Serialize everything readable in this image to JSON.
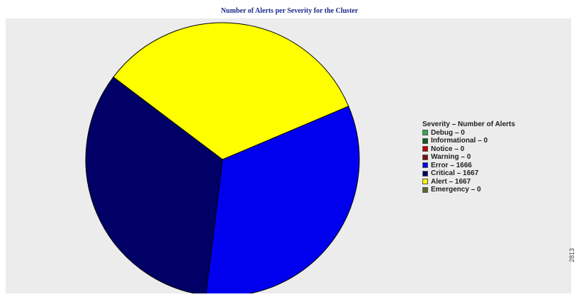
{
  "chart_data": {
    "type": "pie",
    "title": "Number of Alerts per Severity for the Cluster",
    "legend_title": "Severity – Number of Alerts",
    "legend_placement": "right",
    "categories": [
      "Debug",
      "Informational",
      "Notice",
      "Warning",
      "Error",
      "Critical",
      "Alert",
      "Emergency"
    ],
    "values": [
      0,
      0,
      0,
      0,
      1666,
      1667,
      1667,
      0
    ],
    "legend_labels": [
      "Debug – 0",
      "Informational – 0",
      "Notice – 0",
      "Warning – 0",
      "Error – 1666",
      "Critical – 1667",
      "Alert – 1667",
      "Emergency – 0"
    ],
    "colors": [
      "#33aa55",
      "#0b5d1e",
      "#c00000",
      "#7a1010",
      "#0000ee",
      "#000066",
      "#ffff00",
      "#556b2f"
    ]
  },
  "side_id": "2813"
}
